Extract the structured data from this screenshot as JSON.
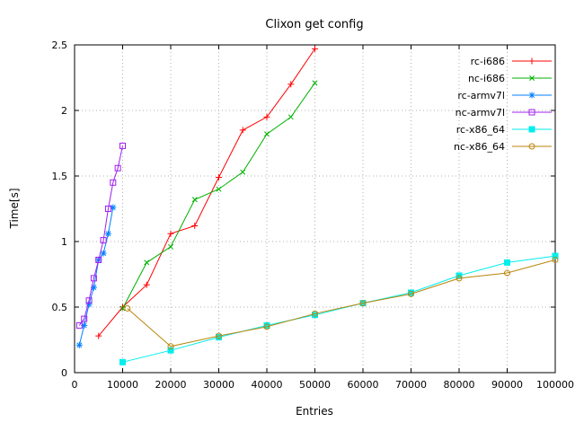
{
  "title": "Clixon get config",
  "xlabel": "Entries",
  "ylabel": "Time[s]",
  "axes": {
    "xmin": 0,
    "xmax": 100000,
    "ymin": 0,
    "ymax": 2.5,
    "xticks": [
      0,
      10000,
      20000,
      30000,
      40000,
      50000,
      60000,
      70000,
      80000,
      90000,
      100000
    ],
    "xtick_labels": [
      "0",
      "10000",
      "20000",
      "30000",
      "40000",
      "50000",
      "60000",
      "70000",
      "80000",
      "90000",
      "100000"
    ],
    "yticks": [
      0,
      0.5,
      1,
      1.5,
      2,
      2.5
    ],
    "ytick_labels": [
      "0",
      "0.5",
      "1",
      "1.5",
      "2",
      "2.5"
    ],
    "grid": true,
    "grid_color": "#b0b0b0",
    "border_color": "#000000"
  },
  "chart_data": {
    "type": "line",
    "title": "Clixon get config",
    "xlabel": "Entries",
    "ylabel": "Time[s]",
    "xlim": [
      0,
      100000
    ],
    "ylim": [
      0,
      2.5
    ],
    "grid": true,
    "legend_position": "top-right",
    "series": [
      {
        "name": "rc-i686",
        "color": "#ff0000",
        "marker": "plus",
        "x": [
          5000,
          10000,
          15000,
          20000,
          25000,
          30000,
          35000,
          40000,
          45000,
          50000
        ],
        "y": [
          0.28,
          0.5,
          0.67,
          1.06,
          1.12,
          1.49,
          1.85,
          1.95,
          2.2,
          2.47
        ]
      },
      {
        "name": "nc-i686",
        "color": "#00b000",
        "marker": "cross",
        "x": [
          10000,
          15000,
          20000,
          25000,
          30000,
          35000,
          40000,
          45000,
          50000
        ],
        "y": [
          0.49,
          0.84,
          0.96,
          1.32,
          1.4,
          1.53,
          1.82,
          1.95,
          2.21
        ]
      },
      {
        "name": "rc-armv7l",
        "color": "#0080ff",
        "marker": "asterisk",
        "x": [
          1000,
          2000,
          3000,
          4000,
          5000,
          6000,
          7000,
          8000
        ],
        "y": [
          0.21,
          0.36,
          0.52,
          0.65,
          0.86,
          0.91,
          1.06,
          1.26
        ]
      },
      {
        "name": "nc-armv7l",
        "color": "#a020f0",
        "marker": "square-open",
        "x": [
          1000,
          2000,
          3000,
          4000,
          5000,
          6000,
          7000,
          8000,
          9000,
          10000
        ],
        "y": [
          0.36,
          0.41,
          0.55,
          0.72,
          0.86,
          1.01,
          1.25,
          1.45,
          1.56,
          1.73
        ]
      },
      {
        "name": "rc-x86_64",
        "color": "#00eeee",
        "marker": "square-filled",
        "x": [
          10000,
          20000,
          30000,
          40000,
          50000,
          60000,
          70000,
          80000,
          90000,
          100000
        ],
        "y": [
          0.08,
          0.17,
          0.27,
          0.36,
          0.44,
          0.53,
          0.61,
          0.74,
          0.84,
          0.89
        ]
      },
      {
        "name": "nc-x86_64",
        "color": "#b8860b",
        "marker": "circle-open",
        "x": [
          11000,
          20000,
          30000,
          40000,
          50000,
          60000,
          70000,
          80000,
          90000,
          100000
        ],
        "y": [
          0.49,
          0.2,
          0.28,
          0.35,
          0.45,
          0.53,
          0.6,
          0.72,
          0.76,
          0.86
        ]
      }
    ]
  }
}
